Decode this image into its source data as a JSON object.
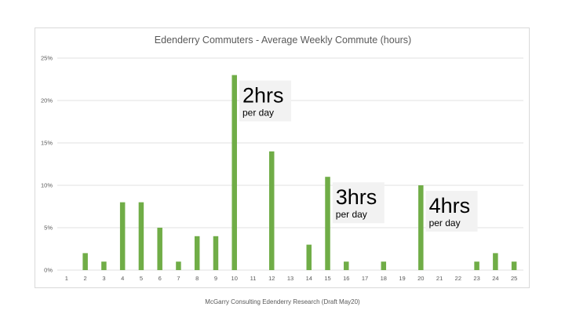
{
  "chart_data": {
    "type": "bar",
    "title": "Edenderry Commuters - Average Weekly Commute (hours)",
    "categories": [
      "1",
      "2",
      "3",
      "4",
      "5",
      "6",
      "7",
      "8",
      "9",
      "10",
      "11",
      "12",
      "13",
      "14",
      "15",
      "16",
      "17",
      "18",
      "19",
      "20",
      "21",
      "22",
      "23",
      "24",
      "25"
    ],
    "values": [
      0,
      2,
      1,
      8,
      8,
      5,
      1,
      4,
      4,
      23,
      0,
      14,
      0,
      3,
      11,
      1,
      0,
      1,
      0,
      10,
      0,
      0,
      1,
      2,
      1
    ],
    "value_unit": "percent",
    "ylim": [
      0,
      25
    ],
    "yticks": [
      0,
      5,
      10,
      15,
      20,
      25
    ],
    "ytick_labels": [
      "0%",
      "5%",
      "10%",
      "15%",
      "20%",
      "25%"
    ],
    "xlabel": "",
    "ylabel": "",
    "grid": "horizontal",
    "bar_color": "#70ad47",
    "annotations": [
      {
        "category": "10",
        "main": "2hrs",
        "sub": "per day"
      },
      {
        "category": "15",
        "main": "3hrs",
        "sub": "per day"
      },
      {
        "category": "20",
        "main": "4hrs",
        "sub": "per day"
      }
    ]
  },
  "footer": "McGarry Consulting Edenderry Research (Draft May20)"
}
